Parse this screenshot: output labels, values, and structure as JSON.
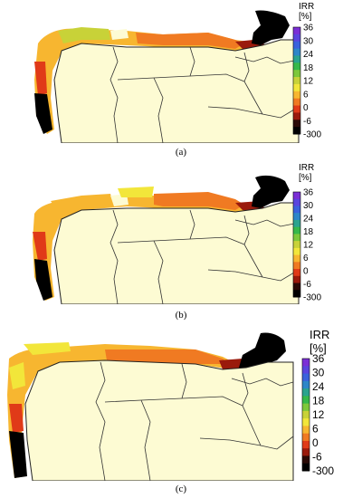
{
  "colorbar": {
    "title_line1": "IRR",
    "title_line2": "[%]",
    "ticks": [
      "36",
      "30",
      "24",
      "18",
      "12",
      "6",
      "0",
      "-6",
      "-300"
    ],
    "colors": [
      "#7b2fd6",
      "#5a45de",
      "#3a62dc",
      "#2d86c8",
      "#2aa38e",
      "#36b84a",
      "#7dc83a",
      "#c8d238",
      "#f2e63a",
      "#f7b630",
      "#f07a22",
      "#e03a18",
      "#9a1a0c",
      "#2a0a06",
      "#000000"
    ]
  },
  "panels": [
    {
      "caption": "(a)"
    },
    {
      "caption": "(b)"
    },
    {
      "caption": "(c)"
    }
  ],
  "colors": {
    "land": "#fdfbd3",
    "border": "#333333",
    "coast": "#222222"
  }
}
